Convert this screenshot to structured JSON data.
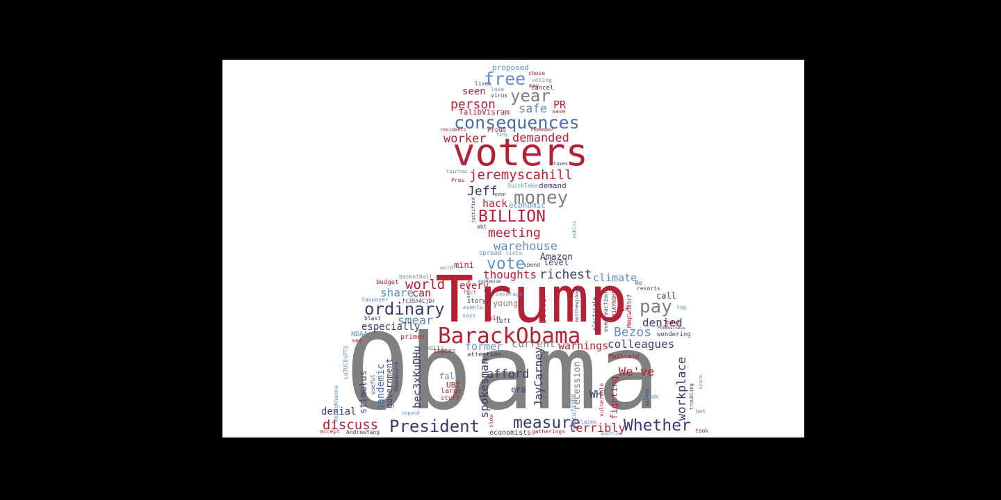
{
  "colors": {
    "background": "#000000",
    "canvas": "#ffffff",
    "red": "#b22234",
    "gray": "#808080",
    "navy": "#3c3b6e",
    "blue": "#5f8ec9",
    "steel": "#4a6fa5"
  },
  "words": [
    {
      "text": "Obama",
      "c": "gray"
    },
    {
      "text": "Trump",
      "c": "red"
    },
    {
      "text": "voters",
      "c": "red"
    },
    {
      "text": "BarackObama",
      "c": "red"
    },
    {
      "text": "consequences",
      "c": "steel"
    },
    {
      "text": "President",
      "c": "navy"
    },
    {
      "text": "ordinary",
      "c": "navy"
    },
    {
      "text": "money",
      "c": "gray"
    },
    {
      "text": "BILLION",
      "c": "red"
    },
    {
      "text": "free",
      "c": "blue"
    },
    {
      "text": "year",
      "c": "gray"
    },
    {
      "text": "person",
      "c": "red"
    },
    {
      "text": "safe",
      "c": "blue"
    },
    {
      "text": "PR",
      "c": "red"
    },
    {
      "text": "worker",
      "c": "red"
    },
    {
      "text": "demanded",
      "c": "red"
    },
    {
      "text": "jeremyscahill",
      "c": "red"
    },
    {
      "text": "Jeff",
      "c": "navy"
    },
    {
      "text": "hack",
      "c": "red"
    },
    {
      "text": "meeting",
      "c": "red"
    },
    {
      "text": "warehouse",
      "c": "blue"
    },
    {
      "text": "vote",
      "c": "blue"
    },
    {
      "text": "Amazon",
      "c": "navy"
    },
    {
      "text": "thoughts",
      "c": "red"
    },
    {
      "text": "richest",
      "c": "navy"
    },
    {
      "text": "world",
      "c": "red"
    },
    {
      "text": "pay",
      "c": "gray"
    },
    {
      "text": "Bezos",
      "c": "blue"
    },
    {
      "text": "measure",
      "c": "navy"
    },
    {
      "text": "Whether",
      "c": "navy"
    },
    {
      "text": "workplace",
      "c": "navy"
    },
    {
      "text": "discuss",
      "c": "red"
    },
    {
      "text": "smear",
      "c": "blue"
    },
    {
      "text": "share",
      "c": "blue"
    },
    {
      "text": "can",
      "c": "red"
    },
    {
      "text": "colleagues",
      "c": "navy"
    },
    {
      "text": "denied",
      "c": "navy"
    },
    {
      "text": "terribly",
      "c": "red"
    },
    {
      "text": "spokesman",
      "c": "navy"
    },
    {
      "text": "JayCarney",
      "c": "navy"
    },
    {
      "text": "We've",
      "c": "red"
    },
    {
      "text": "afford",
      "c": "navy"
    },
    {
      "text": "former",
      "c": "blue"
    },
    {
      "text": "current",
      "c": "gray"
    },
    {
      "text": "warnings",
      "c": "red"
    },
    {
      "text": "climate",
      "c": "blue"
    },
    {
      "text": "bec3xKuDHu",
      "c": "navy"
    },
    {
      "text": "stimulus",
      "c": "navy"
    },
    {
      "text": "pandemic",
      "c": "steel"
    },
    {
      "text": "government",
      "c": "navy"
    },
    {
      "text": "denial",
      "c": "navy"
    },
    {
      "text": "recession",
      "c": "gray"
    },
    {
      "text": "fighting",
      "c": "red"
    },
    {
      "text": "economists",
      "c": "navy"
    },
    {
      "text": "proposed",
      "c": "blue"
    },
    {
      "text": "chose",
      "c": "red"
    },
    {
      "text": "voting",
      "c": "blue"
    },
    {
      "text": "lives",
      "c": "navy"
    },
    {
      "text": "may",
      "c": "red"
    },
    {
      "text": "cancel",
      "c": "navy"
    },
    {
      "text": "love",
      "c": "blue"
    },
    {
      "text": "virus",
      "c": "navy"
    },
    {
      "text": "save",
      "c": "red"
    },
    {
      "text": "TalibVisram",
      "c": "red"
    },
    {
      "text": "residents",
      "c": "red"
    },
    {
      "text": "Proud",
      "c": "red"
    },
    {
      "text": "remember",
      "c": "red"
    },
    {
      "text": "tiny",
      "c": "blue"
    },
    {
      "text": "seen",
      "c": "red"
    },
    {
      "text": "taxes",
      "c": "navy"
    },
    {
      "text": "tainted",
      "c": "gray"
    },
    {
      "text": "Pres",
      "c": "red"
    },
    {
      "text": "QuickTake",
      "c": "blue"
    },
    {
      "text": "demand",
      "c": "navy"
    },
    {
      "text": "economic",
      "c": "blue"
    },
    {
      "text": "even",
      "c": "navy"
    },
    {
      "text": "justified",
      "c": "navy"
    },
    {
      "text": "abt",
      "c": "navy"
    },
    {
      "text": "public",
      "c": "blue"
    },
    {
      "text": "spread",
      "c": "blue"
    },
    {
      "text": "lists",
      "c": "blue"
    },
    {
      "text": "spend",
      "c": "navy"
    },
    {
      "text": "level",
      "c": "navy"
    },
    {
      "text": "mini",
      "c": "red"
    },
    {
      "text": "every",
      "c": "red"
    },
    {
      "text": "better",
      "c": "red"
    },
    {
      "text": "word",
      "c": "blue"
    },
    {
      "text": "basketball",
      "c": "gray"
    },
    {
      "text": "budget",
      "c": "red"
    },
    {
      "text": "euphemism",
      "c": "navy"
    },
    {
      "text": "defense",
      "c": "red"
    },
    {
      "text": "coverage",
      "c": "blue"
    },
    {
      "text": "fact",
      "c": "gray"
    },
    {
      "text": "story",
      "c": "navy"
    },
    {
      "text": "events",
      "c": "blue"
    },
    {
      "text": "says",
      "c": "blue"
    },
    {
      "text": "young",
      "c": "gray"
    },
    {
      "text": "join",
      "c": "red"
    },
    {
      "text": "left",
      "c": "navy"
    },
    {
      "text": "call",
      "c": "navy"
    },
    {
      "text": "Ro",
      "c": "navy"
    },
    {
      "text": "resorts",
      "c": "navy"
    },
    {
      "text": "ask",
      "c": "red"
    },
    {
      "text": "top",
      "c": "blue"
    },
    {
      "text": "best",
      "c": "red"
    },
    {
      "text": "wondering",
      "c": "navy"
    },
    {
      "text": "taxpayer",
      "c": "blue"
    },
    {
      "text": "fc35h4CjDr",
      "c": "navy"
    },
    {
      "text": "blast",
      "c": "navy"
    },
    {
      "text": "especially",
      "c": "navy"
    },
    {
      "text": "NDAA",
      "c": "blue"
    },
    {
      "text": "see",
      "c": "red"
    },
    {
      "text": "primer",
      "c": "red"
    },
    {
      "text": "pundits",
      "c": "gray"
    },
    {
      "text": "states",
      "c": "red"
    },
    {
      "text": "attention",
      "c": "navy"
    },
    {
      "text": "Medicaid",
      "c": "red"
    },
    {
      "text": "WH",
      "c": "navy"
    },
    {
      "text": "electorate",
      "c": "navy"
    },
    {
      "text": "overreaction",
      "c": "navy"
    },
    {
      "text": "6B1AYN5HFQ",
      "c": "red"
    },
    {
      "text": "MWqCwJ8Sr7",
      "c": "red"
    },
    {
      "text": "matthewjdowd",
      "c": "navy"
    },
    {
      "text": "FoxBusiness",
      "c": "navy"
    },
    {
      "text": "Ld7UC8sPTQ",
      "c": "blue"
    },
    {
      "text": "RepRoKhanna",
      "c": "blue"
    },
    {
      "text": "Obamacare",
      "c": "navy"
    },
    {
      "text": "useful",
      "c": "navy"
    },
    {
      "text": "fall",
      "c": "blue"
    },
    {
      "text": "UBI",
      "c": "red"
    },
    {
      "text": "large",
      "c": "red"
    },
    {
      "text": "stuff",
      "c": "red"
    },
    {
      "text": "expand",
      "c": "blue"
    },
    {
      "text": "slow",
      "c": "red"
    },
    {
      "text": "era",
      "c": "navy"
    },
    {
      "text": "K8Ucu7iVDK",
      "c": "blue"
    },
    {
      "text": "claims",
      "c": "blue"
    },
    {
      "text": "vulnerable",
      "c": "red"
    },
    {
      "text": "salary",
      "c": "navy"
    },
    {
      "text": "troubling",
      "c": "navy"
    },
    {
      "text": "since",
      "c": "gray"
    },
    {
      "text": "look",
      "c": "blue"
    },
    {
      "text": "bet",
      "c": "gray"
    },
    {
      "text": "accept",
      "c": "red"
    },
    {
      "text": "AndrewYang",
      "c": "navy"
    },
    {
      "text": "gatherings",
      "c": "red"
    },
    {
      "text": "question",
      "c": "blue"
    },
    {
      "text": "took",
      "c": "red"
    }
  ]
}
